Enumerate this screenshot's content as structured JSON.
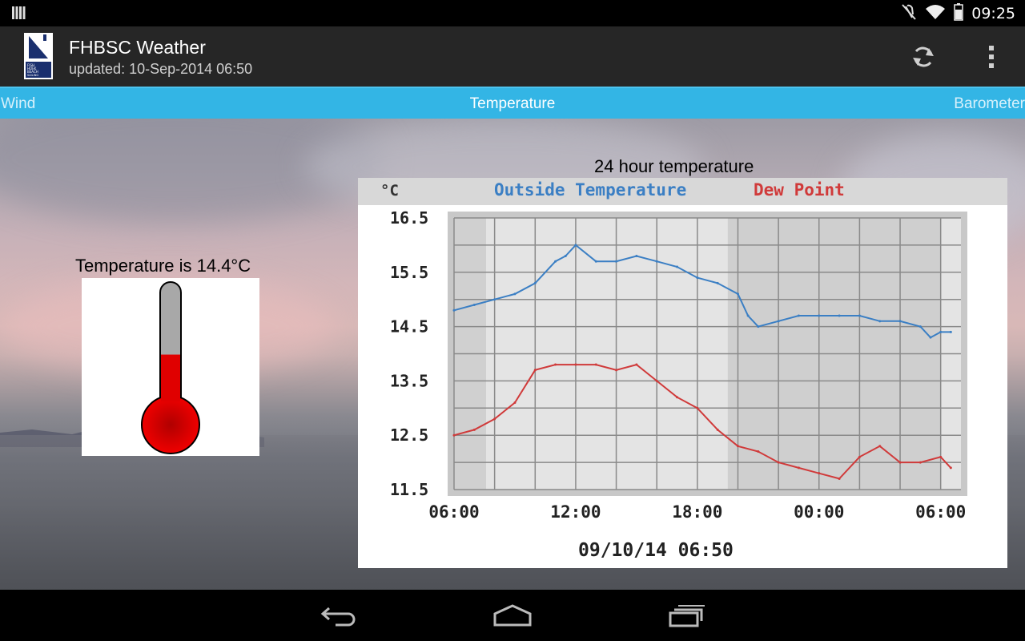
{
  "status_bar": {
    "time": "09:25",
    "icons": [
      "notification-icon",
      "mute-icon",
      "wifi-icon",
      "battery-icon"
    ]
  },
  "action_bar": {
    "title": "FHBSC Weather",
    "subtitle": "updated: 10-Sep-2014 06:50",
    "logo_text": [
      "FISH",
      "HOEK",
      "BEACH",
      "SAILING",
      "CLUB"
    ],
    "actions": [
      "refresh-icon",
      "overflow-menu-icon"
    ]
  },
  "tabs": {
    "left": "Wind",
    "center": "Temperature",
    "right": "Barometer"
  },
  "thermometer": {
    "label": "Temperature is 14.4°C",
    "value": 14.4,
    "fill_fraction": 0.41,
    "colors": {
      "mercury": "#e00000",
      "tube": "#a8a8a8"
    }
  },
  "chart_title": "24 hour temperature",
  "chart_data": {
    "type": "line",
    "unit_label": "°C",
    "legend": [
      "Outside Temperature",
      "Dew Point"
    ],
    "series": [
      {
        "name": "Outside Temperature",
        "color": "#3b7fc4",
        "x": [
          6,
          7,
          8,
          9,
          10,
          11,
          11.5,
          12,
          13,
          14,
          15,
          16,
          17,
          18,
          19,
          20,
          20.5,
          21,
          22,
          23,
          24,
          25,
          26,
          27,
          28,
          29,
          29.5,
          30,
          30.5
        ],
        "values": [
          14.8,
          14.9,
          15.0,
          15.1,
          15.3,
          15.7,
          15.8,
          16.0,
          15.7,
          15.7,
          15.8,
          15.7,
          15.6,
          15.4,
          15.3,
          15.1,
          14.7,
          14.5,
          14.6,
          14.7,
          14.7,
          14.7,
          14.7,
          14.6,
          14.6,
          14.5,
          14.3,
          14.4,
          14.4
        ]
      },
      {
        "name": "Dew Point",
        "color": "#d03a3a",
        "x": [
          6,
          7,
          8,
          9,
          10,
          11,
          12,
          13,
          14,
          15,
          16,
          17,
          18,
          19,
          20,
          21,
          22,
          23,
          24,
          25,
          26,
          27,
          28,
          29,
          30,
          30.5
        ],
        "values": [
          12.5,
          12.6,
          12.8,
          13.1,
          13.7,
          13.8,
          13.8,
          13.8,
          13.7,
          13.8,
          13.5,
          13.2,
          13.0,
          12.6,
          12.3,
          12.2,
          12.0,
          11.9,
          11.8,
          11.7,
          12.1,
          12.3,
          12.0,
          12.0,
          12.1,
          11.9
        ]
      }
    ],
    "ylim": [
      11.5,
      16.5
    ],
    "y_ticks": [
      "16.5",
      "15.5",
      "14.5",
      "13.5",
      "12.5",
      "11.5"
    ],
    "x_range": [
      6,
      31
    ],
    "x_ticks": [
      {
        "x": 6,
        "label": "06:00"
      },
      {
        "x": 12,
        "label": "12:00"
      },
      {
        "x": 18,
        "label": "18:00"
      },
      {
        "x": 24,
        "label": "00:00"
      },
      {
        "x": 30,
        "label": "06:00"
      }
    ],
    "timestamp": "09/10/14 06:50",
    "grid": true
  }
}
